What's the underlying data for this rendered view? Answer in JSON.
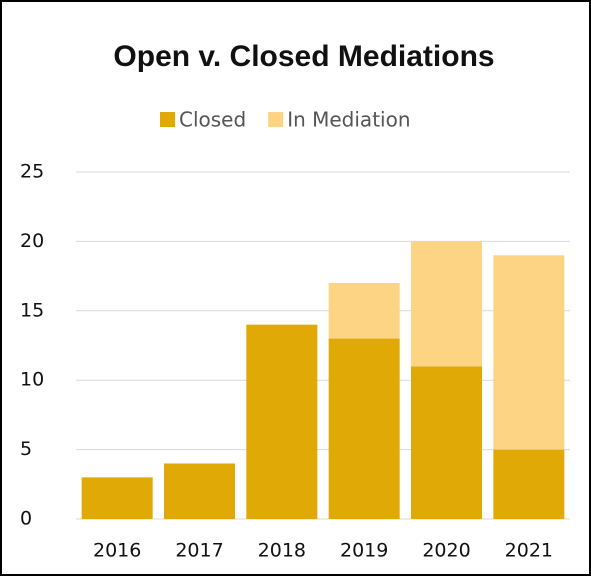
{
  "chart_data": {
    "type": "bar",
    "stacked": true,
    "title": "Open v. Closed Mediations",
    "categories": [
      "2016",
      "2017",
      "2018",
      "2019",
      "2020",
      "2021"
    ],
    "series": [
      {
        "name": "Closed",
        "color": "#e0a905",
        "values": [
          3,
          4,
          14,
          13,
          11,
          5
        ]
      },
      {
        "name": "In Mediation",
        "color": "#fdd384",
        "values": [
          0,
          0,
          0,
          4,
          9,
          14
        ]
      }
    ],
    "ylim": [
      0,
      25
    ],
    "yticks": [
      0,
      5,
      10,
      15,
      20,
      25
    ],
    "grid": true,
    "legend": "top"
  }
}
